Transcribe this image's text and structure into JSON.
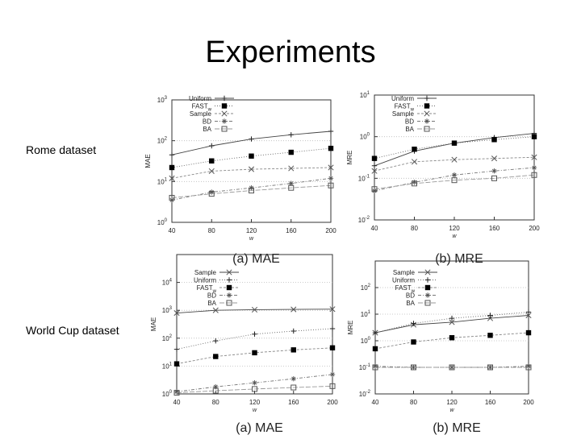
{
  "slide": {
    "title": "Experiments",
    "row_labels": [
      "Rome dataset",
      "World Cup dataset"
    ]
  },
  "chart_data": [
    {
      "type": "line",
      "caption": "(a) MAE",
      "xlabel": "w",
      "ylabel": "MAE",
      "yscale": "log",
      "ylim": [
        1,
        1000
      ],
      "x": [
        40,
        80,
        120,
        160,
        200
      ],
      "xticks": [
        "40",
        "80",
        "120",
        "160",
        "200"
      ],
      "yticks": [
        {
          "base": "10",
          "exp": "0"
        },
        {
          "base": "10",
          "exp": "1"
        },
        {
          "base": "10",
          "exp": "2"
        },
        {
          "base": "10",
          "exp": "3"
        }
      ],
      "series": [
        {
          "name": "Uniform",
          "marker": "plus",
          "values": [
            45,
            75,
            110,
            140,
            170
          ]
        },
        {
          "name": "FAST",
          "subscript": "w",
          "marker": "filled-square",
          "values": [
            22,
            32,
            42,
            52,
            65
          ]
        },
        {
          "name": "Sample",
          "marker": "cross",
          "values": [
            12,
            18,
            20,
            21,
            22
          ]
        },
        {
          "name": "BD",
          "marker": "star",
          "values": [
            3.5,
            5.5,
            7,
            9,
            12
          ]
        },
        {
          "name": "BA",
          "marker": "open-square",
          "values": [
            4,
            5,
            6,
            7,
            8
          ]
        }
      ]
    },
    {
      "type": "line",
      "caption": "(b) MRE",
      "xlabel": "w",
      "ylabel": "MRE",
      "yscale": "log",
      "ylim": [
        0.01,
        10
      ],
      "x": [
        40,
        80,
        120,
        160,
        200
      ],
      "xticks": [
        "40",
        "80",
        "120",
        "160",
        "200"
      ],
      "yticks": [
        {
          "base": "10",
          "exp": "-2"
        },
        {
          "base": "10",
          "exp": "-1"
        },
        {
          "base": "10",
          "exp": "0"
        },
        {
          "base": "10",
          "exp": "1"
        }
      ],
      "series": [
        {
          "name": "Uniform",
          "marker": "plus",
          "values": [
            0.2,
            0.45,
            0.7,
            0.95,
            1.2
          ]
        },
        {
          "name": "FAST",
          "subscript": "w",
          "marker": "filled-square",
          "values": [
            0.3,
            0.5,
            0.7,
            0.85,
            1.0
          ]
        },
        {
          "name": "Sample",
          "marker": "cross",
          "values": [
            0.15,
            0.25,
            0.28,
            0.3,
            0.32
          ]
        },
        {
          "name": "BD",
          "marker": "star",
          "values": [
            0.05,
            0.08,
            0.12,
            0.15,
            0.18
          ]
        },
        {
          "name": "BA",
          "marker": "open-square",
          "values": [
            0.055,
            0.075,
            0.09,
            0.1,
            0.12
          ]
        }
      ]
    },
    {
      "type": "line",
      "caption": "(a) MAE",
      "xlabel": "w",
      "ylabel": "MAE",
      "yscale": "log",
      "ylim": [
        1,
        100000
      ],
      "x": [
        40,
        80,
        120,
        160,
        200
      ],
      "xticks": [
        "40",
        "80",
        "120",
        "160",
        "200"
      ],
      "yticks": [
        {
          "base": "10",
          "exp": "0"
        },
        {
          "base": "10",
          "exp": "1"
        },
        {
          "base": "10",
          "exp": "2"
        },
        {
          "base": "10",
          "exp": "3"
        },
        {
          "base": "10",
          "exp": "4"
        }
      ],
      "series": [
        {
          "name": "Sample",
          "marker": "cross",
          "values": [
            800,
            1000,
            1050,
            1080,
            1100
          ]
        },
        {
          "name": "Uniform",
          "marker": "plus",
          "values": [
            40,
            80,
            140,
            180,
            220
          ]
        },
        {
          "name": "FAST",
          "subscript": "w",
          "marker": "filled-square",
          "values": [
            12,
            22,
            30,
            38,
            45
          ]
        },
        {
          "name": "BD",
          "marker": "star",
          "values": [
            1.2,
            1.8,
            2.5,
            3.5,
            5
          ]
        },
        {
          "name": "BA",
          "marker": "open-square",
          "values": [
            1.1,
            1.3,
            1.5,
            1.7,
            1.9
          ]
        }
      ]
    },
    {
      "type": "line",
      "caption": "(b) MRE",
      "xlabel": "w",
      "ylabel": "MRE",
      "yscale": "log",
      "ylim": [
        0.01,
        1000
      ],
      "x": [
        40,
        80,
        120,
        160,
        200
      ],
      "xticks": [
        "40",
        "80",
        "120",
        "160",
        "200"
      ],
      "yticks": [
        {
          "base": "10",
          "exp": "-2"
        },
        {
          "base": "10",
          "exp": "-1"
        },
        {
          "base": "10",
          "exp": "0"
        },
        {
          "base": "10",
          "exp": "1"
        },
        {
          "base": "10",
          "exp": "2"
        }
      ],
      "series": [
        {
          "name": "Sample",
          "marker": "cross",
          "values": [
            2,
            4,
            5,
            7,
            9
          ]
        },
        {
          "name": "Uniform",
          "marker": "plus",
          "values": [
            2,
            4.5,
            7,
            9,
            12
          ]
        },
        {
          "name": "FAST",
          "subscript": "w",
          "marker": "filled-square",
          "values": [
            0.5,
            0.9,
            1.3,
            1.6,
            2
          ]
        },
        {
          "name": "BD",
          "marker": "star",
          "values": [
            0.11,
            0.1,
            0.1,
            0.1,
            0.11
          ]
        },
        {
          "name": "BA",
          "marker": "open-square",
          "values": [
            0.1,
            0.1,
            0.1,
            0.1,
            0.1
          ]
        }
      ]
    }
  ]
}
